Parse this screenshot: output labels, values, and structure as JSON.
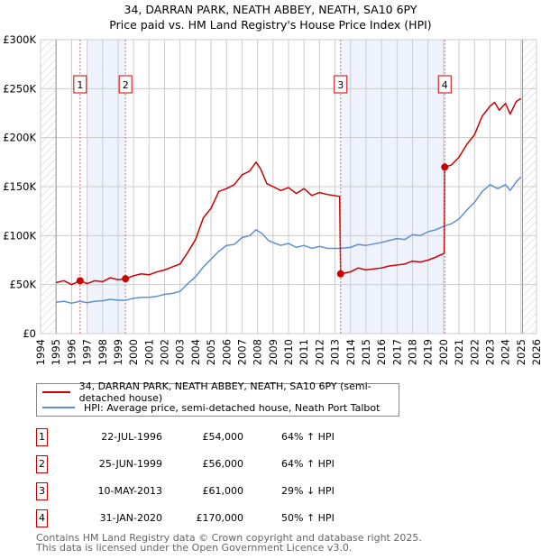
{
  "title_line1": "34, DARRAN PARK, NEATH ABBEY, NEATH, SA10 6PY",
  "title_line2": "Price paid vs. HM Land Registry's House Price Index (HPI)",
  "colors": {
    "property": "#cc0000",
    "hpi": "#6090d0",
    "shade": "#eef3fd",
    "grid": "#cccccc"
  },
  "chart_data": {
    "type": "line",
    "title": "34, DARRAN PARK, NEATH ABBEY, NEATH, SA10 6PY — Price paid vs. HM Land Registry's House Price Index (HPI)",
    "xlim": [
      1994,
      2026
    ],
    "ylim": [
      0,
      300000
    ],
    "x_ticks": [
      "1994",
      "1995",
      "1996",
      "1997",
      "1998",
      "1999",
      "2000",
      "2001",
      "2002",
      "2003",
      "2004",
      "2005",
      "2006",
      "2007",
      "2008",
      "2009",
      "2010",
      "2011",
      "2012",
      "2013",
      "2014",
      "2015",
      "2016",
      "2017",
      "2018",
      "2019",
      "2020",
      "2021",
      "2022",
      "2023",
      "2024",
      "2025",
      "2026"
    ],
    "y_ticks": [
      {
        "v": 0,
        "label": "£0"
      },
      {
        "v": 50000,
        "label": "£50K"
      },
      {
        "v": 100000,
        "label": "£100K"
      },
      {
        "v": 150000,
        "label": "£150K"
      },
      {
        "v": 200000,
        "label": "£200K"
      },
      {
        "v": 250000,
        "label": "£250K"
      },
      {
        "v": 300000,
        "label": "£300K"
      }
    ],
    "grid": true,
    "hatched_ranges": [
      [
        1994,
        1995
      ],
      [
        2025.1,
        2026
      ]
    ],
    "shaded_ranges": [
      [
        1997.0,
        1999.48
      ],
      [
        2013.36,
        2020.08
      ]
    ],
    "series": [
      {
        "name": "34, DARRAN PARK, NEATH ABBEY, NEATH, SA10 6PY (semi-detached house)",
        "color": "#cc0000",
        "points": [
          [
            1995,
            52000
          ],
          [
            1995.5,
            54000
          ],
          [
            1996,
            50000
          ],
          [
            1996.55,
            54000
          ],
          [
            1997,
            51000
          ],
          [
            1997.5,
            54000
          ],
          [
            1998,
            53000
          ],
          [
            1998.5,
            57000
          ],
          [
            1999,
            55000
          ],
          [
            1999.48,
            56000
          ],
          [
            2000,
            59000
          ],
          [
            2000.5,
            61000
          ],
          [
            2001,
            60000
          ],
          [
            2001.5,
            63000
          ],
          [
            2002,
            65000
          ],
          [
            2002.5,
            68000
          ],
          [
            2003,
            71000
          ],
          [
            2003.5,
            83000
          ],
          [
            2004,
            96000
          ],
          [
            2004.5,
            118000
          ],
          [
            2005,
            128000
          ],
          [
            2005.5,
            145000
          ],
          [
            2006,
            148000
          ],
          [
            2006.5,
            152000
          ],
          [
            2007,
            162000
          ],
          [
            2007.5,
            166000
          ],
          [
            2007.9,
            175000
          ],
          [
            2008.2,
            168000
          ],
          [
            2008.6,
            153000
          ],
          [
            2009,
            150000
          ],
          [
            2009.5,
            146000
          ],
          [
            2010,
            149000
          ],
          [
            2010.5,
            143000
          ],
          [
            2011,
            148000
          ],
          [
            2011.5,
            141000
          ],
          [
            2012,
            144000
          ],
          [
            2012.5,
            142000
          ],
          [
            2013.3,
            140000
          ],
          [
            2013.36,
            61000
          ],
          [
            2014,
            63000
          ],
          [
            2014.5,
            67000
          ],
          [
            2015,
            65000
          ],
          [
            2016,
            67000
          ],
          [
            2016.5,
            69000
          ],
          [
            2017,
            70000
          ],
          [
            2017.5,
            71000
          ],
          [
            2018,
            74000
          ],
          [
            2018.5,
            73000
          ],
          [
            2019,
            75000
          ],
          [
            2019.5,
            78000
          ],
          [
            2020.05,
            82000
          ],
          [
            2020.08,
            170000
          ],
          [
            2020.5,
            172000
          ],
          [
            2021,
            180000
          ],
          [
            2021.5,
            193000
          ],
          [
            2022,
            203000
          ],
          [
            2022.5,
            222000
          ],
          [
            2023,
            232000
          ],
          [
            2023.3,
            236000
          ],
          [
            2023.6,
            228000
          ],
          [
            2024,
            235000
          ],
          [
            2024.3,
            224000
          ],
          [
            2024.7,
            237000
          ],
          [
            2025.0,
            240000
          ]
        ]
      },
      {
        "name": "HPI: Average price, semi-detached house, Neath Port Talbot",
        "color": "#6090d0",
        "points": [
          [
            1995,
            32000
          ],
          [
            1995.5,
            33000
          ],
          [
            1996,
            31000
          ],
          [
            1996.55,
            33000
          ],
          [
            1997,
            31500
          ],
          [
            1997.5,
            33000
          ],
          [
            1998,
            33500
          ],
          [
            1998.5,
            35000
          ],
          [
            1999,
            34000
          ],
          [
            1999.48,
            34000
          ],
          [
            2000,
            36000
          ],
          [
            2000.5,
            37000
          ],
          [
            2001,
            37000
          ],
          [
            2001.5,
            38000
          ],
          [
            2002,
            40000
          ],
          [
            2002.5,
            41000
          ],
          [
            2003,
            43000
          ],
          [
            2003.5,
            51000
          ],
          [
            2004,
            58000
          ],
          [
            2004.5,
            68000
          ],
          [
            2005,
            76000
          ],
          [
            2005.5,
            84000
          ],
          [
            2006,
            90000
          ],
          [
            2006.5,
            91000
          ],
          [
            2007,
            98000
          ],
          [
            2007.5,
            100000
          ],
          [
            2007.9,
            106000
          ],
          [
            2008.3,
            102000
          ],
          [
            2008.7,
            95000
          ],
          [
            2009,
            93000
          ],
          [
            2009.5,
            90000
          ],
          [
            2010,
            92000
          ],
          [
            2010.5,
            88000
          ],
          [
            2011,
            90000
          ],
          [
            2011.5,
            87000
          ],
          [
            2012,
            89000
          ],
          [
            2012.5,
            87000
          ],
          [
            2013.3,
            87000
          ],
          [
            2014,
            88000
          ],
          [
            2014.5,
            91000
          ],
          [
            2015,
            90000
          ],
          [
            2016,
            93000
          ],
          [
            2016.5,
            95000
          ],
          [
            2017,
            97000
          ],
          [
            2017.5,
            96000
          ],
          [
            2018,
            101000
          ],
          [
            2018.5,
            100000
          ],
          [
            2019,
            104000
          ],
          [
            2019.5,
            106000
          ],
          [
            2020.08,
            110000
          ],
          [
            2020.5,
            112000
          ],
          [
            2021,
            117000
          ],
          [
            2021.5,
            126000
          ],
          [
            2022,
            134000
          ],
          [
            2022.5,
            145000
          ],
          [
            2023,
            152000
          ],
          [
            2023.5,
            148000
          ],
          [
            2024,
            152000
          ],
          [
            2024.3,
            146000
          ],
          [
            2024.7,
            155000
          ],
          [
            2025.0,
            160000
          ]
        ]
      }
    ],
    "sales": [
      {
        "n": "1",
        "x": 1996.55,
        "y": 54000
      },
      {
        "n": "2",
        "x": 1999.48,
        "y": 56000
      },
      {
        "n": "3",
        "x": 2013.36,
        "y": 61000
      },
      {
        "n": "4",
        "x": 2020.08,
        "y": 170000
      }
    ]
  },
  "legend": {
    "property": "34, DARRAN PARK, NEATH ABBEY, NEATH, SA10 6PY (semi-detached house)",
    "hpi": "HPI: Average price, semi-detached house, Neath Port Talbot"
  },
  "transactions": [
    {
      "n": "1",
      "date": "22-JUL-1996",
      "price": "£54,000",
      "hpi": "64% ↑ HPI"
    },
    {
      "n": "2",
      "date": "25-JUN-1999",
      "price": "£56,000",
      "hpi": "64% ↑ HPI"
    },
    {
      "n": "3",
      "date": "10-MAY-2013",
      "price": "£61,000",
      "hpi": "29% ↓ HPI"
    },
    {
      "n": "4",
      "date": "31-JAN-2020",
      "price": "£170,000",
      "hpi": "50% ↑ HPI"
    }
  ],
  "footer": {
    "line1": "Contains HM Land Registry data © Crown copyright and database right 2025.",
    "line2": "This data is licensed under the Open Government Licence v3.0."
  }
}
